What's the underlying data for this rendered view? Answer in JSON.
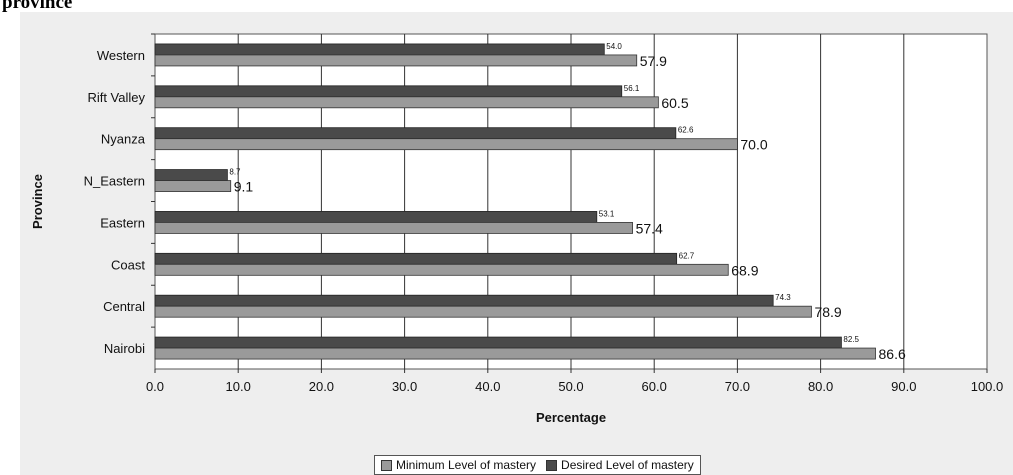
{
  "caption": "province",
  "colors": {
    "minimum": "#9a9a9a",
    "desired": "#4a4a4a",
    "plot_bg": "#ffffff",
    "panel_bg": "#eeeeee"
  },
  "chart_data": {
    "type": "bar",
    "orientation": "horizontal",
    "xlabel": "Percentage",
    "ylabel": "Province",
    "xlim": [
      0,
      100
    ],
    "xticks": [
      "0.0",
      "10.0",
      "20.0",
      "30.0",
      "40.0",
      "50.0",
      "60.0",
      "70.0",
      "80.0",
      "90.0",
      "100.0"
    ],
    "grid": true,
    "legend_position": "bottom",
    "categories": [
      "Western",
      "Rift Valley",
      "Nyanza",
      "N_Eastern",
      "Eastern",
      "Coast",
      "Central",
      "Nairobi"
    ],
    "series": [
      {
        "name": "Minimum Level of mastery",
        "values": [
          57.9,
          60.5,
          70.0,
          9.1,
          57.4,
          68.9,
          78.9,
          86.6
        ],
        "labels": [
          "57.9",
          "60.5",
          "70.0",
          "9.1",
          "57.4",
          "68.9",
          "78.9",
          "86.6"
        ]
      },
      {
        "name": "Desired Level of mastery",
        "values": [
          54.0,
          56.1,
          62.6,
          8.7,
          53.1,
          62.7,
          74.3,
          82.5
        ],
        "labels": [
          "54.0",
          "56.1",
          "62.6",
          "8.7",
          "53.1",
          "62.7",
          "74.3",
          "82.5"
        ]
      }
    ]
  }
}
